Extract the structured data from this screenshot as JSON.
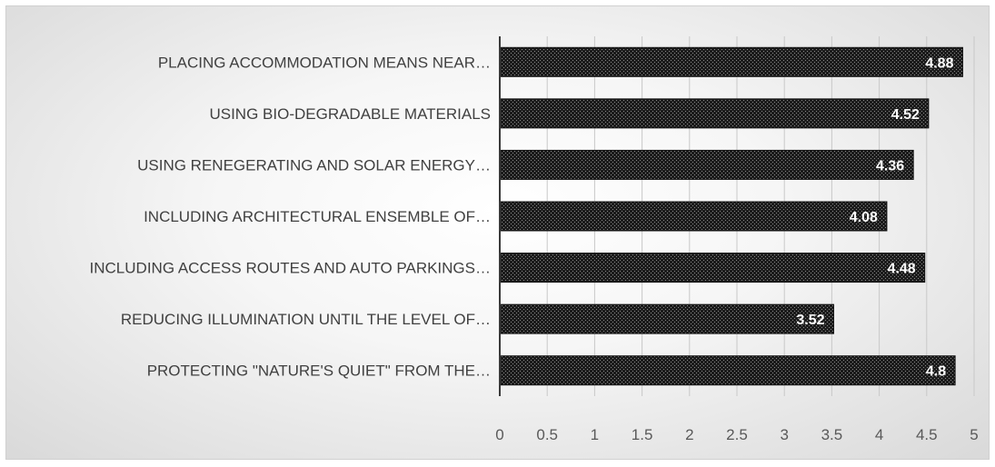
{
  "chart_data": {
    "type": "bar",
    "orientation": "horizontal",
    "categories": [
      "PLACING ACCOMMODATION MEANS NEAR…",
      "USING BIO-DEGRADABLE MATERIALS",
      "USING RENEGERATING AND SOLAR ENERGY…",
      "INCLUDING ARCHITECTURAL ENSEMBLE OF…",
      "INCLUDING ACCESS ROUTES AND AUTO PARKINGS…",
      "REDUCING ILLUMINATION UNTIL THE LEVEL OF…",
      "PROTECTING \"NATURE'S QUIET\" FROM THE…"
    ],
    "values": [
      4.88,
      4.52,
      4.36,
      4.08,
      4.48,
      3.52,
      4.8
    ],
    "data_labels": [
      "4.88",
      "4.52",
      "4.36",
      "4.08",
      "4.48",
      "3.52",
      "4.8"
    ],
    "x_ticks": [
      "0",
      "0.5",
      "1",
      "1.5",
      "2",
      "2.5",
      "3",
      "3.5",
      "4",
      "4.5",
      "5"
    ],
    "xlim": [
      0,
      5
    ],
    "grid": true,
    "legend": "none",
    "bar_color": "#1a1a1a",
    "bar_pattern": "dotted"
  }
}
